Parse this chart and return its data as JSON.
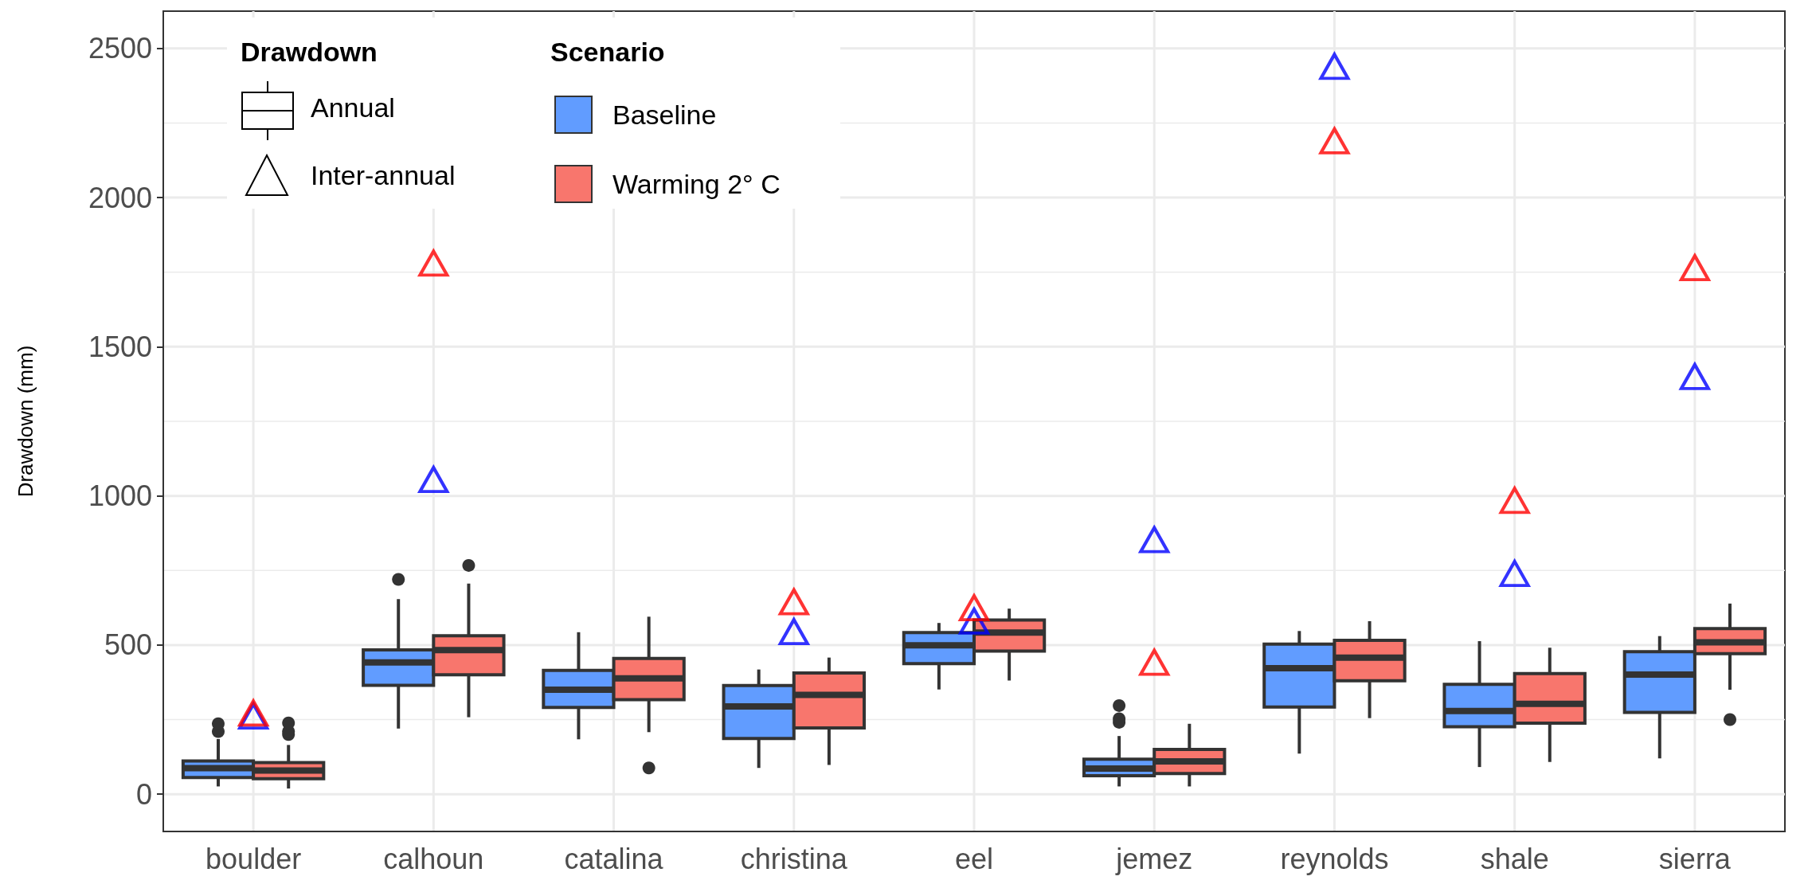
{
  "chart_data": {
    "type": "box",
    "ylabel": "Drawdown (mm)",
    "legend_title": "Scenario",
    "legend": "top left",
    "grid": true,
    "marker": "triangle",
    "annotations": [
      "Drawdown",
      "Annual",
      "Inter-annual"
    ],
    "categories": [
      "boulder",
      "calhoun",
      "catalina",
      "christina",
      "eel",
      "jemez",
      "reynolds",
      "shale",
      "sierra"
    ],
    "ylim": [
      -125,
      2625
    ],
    "yticks": [
      0,
      500,
      1000,
      1500,
      2000,
      2500
    ],
    "series": [
      {
        "name": "Baseline",
        "color": "#619cff",
        "boxes": [
          {
            "low": 26,
            "q1": 56,
            "median": 87,
            "q3": 111,
            "high": 185,
            "outliers": [
              210,
              236
            ]
          },
          {
            "low": 220,
            "q1": 365,
            "median": 442,
            "q3": 484,
            "high": 654,
            "outliers": [
              720
            ]
          },
          {
            "low": 184,
            "q1": 291,
            "median": 350,
            "q3": 415,
            "high": 543
          },
          {
            "low": 88,
            "q1": 187,
            "median": 294,
            "q3": 364,
            "high": 418
          },
          {
            "low": 351,
            "q1": 438,
            "median": 499,
            "q3": 542,
            "high": 574
          },
          {
            "low": 26,
            "q1": 62,
            "median": 86,
            "q3": 117,
            "high": 195,
            "outliers": [
              241,
              253,
              297
            ]
          },
          {
            "low": 136,
            "q1": 292,
            "median": 422,
            "q3": 503,
            "high": 547
          },
          {
            "low": 91,
            "q1": 226,
            "median": 279,
            "q3": 368,
            "high": 513
          },
          {
            "low": 120,
            "q1": 274,
            "median": 401,
            "q3": 478,
            "high": 530
          }
        ]
      },
      {
        "name": "Warming 2° C",
        "color": "#f8766d",
        "boxes": [
          {
            "low": 19,
            "q1": 52,
            "median": 79,
            "q3": 106,
            "high": 165,
            "outliers": [
              200,
              210,
              239
            ]
          },
          {
            "low": 258,
            "q1": 400,
            "median": 483,
            "q3": 531,
            "high": 706,
            "outliers": [
              767
            ]
          },
          {
            "low": 208,
            "q1": 317,
            "median": 388,
            "q3": 455,
            "high": 595,
            "outliers": [
              88
            ]
          },
          {
            "low": 98,
            "q1": 222,
            "median": 333,
            "q3": 406,
            "high": 458
          },
          {
            "low": 381,
            "q1": 480,
            "median": 542,
            "q3": 584,
            "high": 622
          },
          {
            "low": 26,
            "q1": 69,
            "median": 110,
            "q3": 150,
            "high": 236
          },
          {
            "low": 255,
            "q1": 380,
            "median": 458,
            "q3": 516,
            "high": 580
          },
          {
            "low": 108,
            "q1": 238,
            "median": 303,
            "q3": 404,
            "high": 491
          },
          {
            "low": 350,
            "q1": 471,
            "median": 509,
            "q3": 555,
            "high": 639,
            "outliers": [
              250
            ]
          }
        ]
      },
      {
        "type": "scatter",
        "color": "#0000ff",
        "x": [
          "boulder",
          "calhoun",
          "catalina",
          "christina",
          "eel",
          "jemez",
          "reynolds",
          "shale",
          "sierra"
        ],
        "values": [
          262,
          1055,
          null,
          545,
          580,
          853,
          2440,
          740,
          1400
        ]
      },
      {
        "type": "scatter",
        "color": "#ff0000",
        "x": [
          "boulder",
          "calhoun",
          "catalina",
          "christina",
          "eel",
          "jemez",
          "reynolds",
          "shale",
          "sierra"
        ],
        "values": [
          272,
          1780,
          null,
          645,
          625,
          442,
          2190,
          985,
          1765
        ]
      }
    ]
  }
}
